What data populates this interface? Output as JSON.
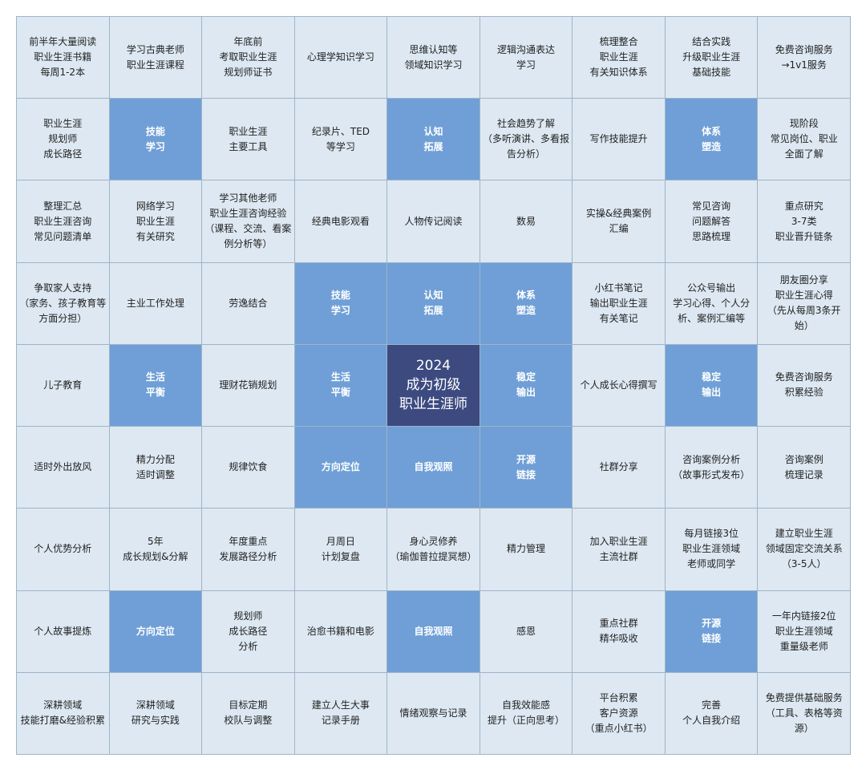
{
  "colors": {
    "cell_bg": "#dde8f2",
    "theme_bg": "#6f9fd6",
    "center_bg": "#3c4a80",
    "border": "#9fb4c8"
  },
  "grid": {
    "rows": [
      [
        {
          "text": "前半年大量阅读\n职业生涯书籍\n每周1-2本",
          "style": "normal"
        },
        {
          "text": "学习古典老师\n职业生涯课程",
          "style": "normal"
        },
        {
          "text": "年底前\n考取职业生涯\n规划师证书",
          "style": "normal"
        },
        {
          "text": "心理学知识学习",
          "style": "normal"
        },
        {
          "text": "思维认知等\n领域知识学习",
          "style": "normal"
        },
        {
          "text": "逻辑沟通表达\n学习",
          "style": "normal"
        },
        {
          "text": "梳理整合\n职业生涯\n有关知识体系",
          "style": "normal"
        },
        {
          "text": "结合实践\n升级职业生涯\n基础技能",
          "style": "normal"
        },
        {
          "text": "免费咨询服务\n→1v1服务",
          "style": "normal"
        }
      ],
      [
        {
          "text": "职业生涯\n规划师\n成长路径",
          "style": "normal"
        },
        {
          "text": "技能\n学习",
          "style": "theme"
        },
        {
          "text": "职业生涯\n主要工具",
          "style": "normal"
        },
        {
          "text": "纪录片、TED\n等学习",
          "style": "normal"
        },
        {
          "text": "认知\n拓展",
          "style": "theme"
        },
        {
          "text": "社会趋势了解\n（多听演讲、多看报\n告分析）",
          "style": "normal"
        },
        {
          "text": "写作技能提升",
          "style": "normal"
        },
        {
          "text": "体系\n塑造",
          "style": "theme"
        },
        {
          "text": "现阶段\n常见岗位、职业\n全面了解",
          "style": "normal"
        }
      ],
      [
        {
          "text": "整理汇总\n职业生涯咨询\n常见问题清单",
          "style": "normal"
        },
        {
          "text": "网络学习\n职业生涯\n有关研究",
          "style": "normal"
        },
        {
          "text": "学习其他老师\n职业生涯咨询经验\n（课程、交流、看案\n例分析等）",
          "style": "normal"
        },
        {
          "text": "经典电影观看",
          "style": "normal"
        },
        {
          "text": "人物传记阅读",
          "style": "normal"
        },
        {
          "text": "数易",
          "style": "normal"
        },
        {
          "text": "实操&经典案例\n汇编",
          "style": "normal"
        },
        {
          "text": "常见咨询\n问题解答\n思路梳理",
          "style": "normal"
        },
        {
          "text": "重点研究\n3-7类\n职业晋升链条",
          "style": "normal"
        }
      ],
      [
        {
          "text": "争取家人支持\n（家务、孩子教育等\n方面分担）",
          "style": "normal"
        },
        {
          "text": "主业工作处理",
          "style": "normal"
        },
        {
          "text": "劳逸结合",
          "style": "normal"
        },
        {
          "text": "技能\n学习",
          "style": "theme"
        },
        {
          "text": "认知\n拓展",
          "style": "theme"
        },
        {
          "text": "体系\n塑造",
          "style": "theme"
        },
        {
          "text": "小红书笔记\n输出职业生涯\n有关笔记",
          "style": "normal"
        },
        {
          "text": "公众号输出\n学习心得、个人分\n析、案例汇编等",
          "style": "normal"
        },
        {
          "text": "朋友圈分享\n职业生涯心得\n（先从每周3条开\n始）",
          "style": "normal"
        }
      ],
      [
        {
          "text": "儿子教育",
          "style": "normal"
        },
        {
          "text": "生活\n平衡",
          "style": "theme"
        },
        {
          "text": "理财花销规划",
          "style": "normal"
        },
        {
          "text": "生活\n平衡",
          "style": "theme"
        },
        {
          "text": "2024\n成为初级\n职业生涯师",
          "style": "center"
        },
        {
          "text": "稳定\n输出",
          "style": "theme"
        },
        {
          "text": "个人成长心得撰写",
          "style": "normal"
        },
        {
          "text": "稳定\n输出",
          "style": "theme"
        },
        {
          "text": "免费咨询服务\n积累经验",
          "style": "normal"
        }
      ],
      [
        {
          "text": "适时外出放风",
          "style": "normal"
        },
        {
          "text": "精力分配\n适时调整",
          "style": "normal"
        },
        {
          "text": "规律饮食",
          "style": "normal"
        },
        {
          "text": "方向定位",
          "style": "theme"
        },
        {
          "text": "自我观照",
          "style": "theme"
        },
        {
          "text": "开源\n链接",
          "style": "theme"
        },
        {
          "text": "社群分享",
          "style": "normal"
        },
        {
          "text": "咨询案例分析\n（故事形式发布）",
          "style": "normal"
        },
        {
          "text": "咨询案例\n梳理记录",
          "style": "normal"
        }
      ],
      [
        {
          "text": "个人优势分析",
          "style": "normal"
        },
        {
          "text": "5年\n成长规划&分解",
          "style": "normal"
        },
        {
          "text": "年度重点\n发展路径分析",
          "style": "normal"
        },
        {
          "text": "月周日\n计划复盘",
          "style": "normal"
        },
        {
          "text": "身心灵修养\n（瑜伽普拉提冥想）",
          "style": "normal"
        },
        {
          "text": "精力管理",
          "style": "normal"
        },
        {
          "text": "加入职业生涯\n主流社群",
          "style": "normal"
        },
        {
          "text": "每月链接3位\n职业生涯领域\n老师或同学",
          "style": "normal"
        },
        {
          "text": "建立职业生涯\n领域固定交流关系\n（3-5人）",
          "style": "normal"
        }
      ],
      [
        {
          "text": "个人故事提炼",
          "style": "normal"
        },
        {
          "text": "方向定位",
          "style": "theme"
        },
        {
          "text": "规划师\n成长路径\n分析",
          "style": "normal"
        },
        {
          "text": "治愈书籍和电影",
          "style": "normal"
        },
        {
          "text": "自我观照",
          "style": "theme"
        },
        {
          "text": "感恩",
          "style": "normal"
        },
        {
          "text": "重点社群\n精华吸收",
          "style": "normal"
        },
        {
          "text": "开源\n链接",
          "style": "theme"
        },
        {
          "text": "一年内链接2位\n职业生涯领域\n重量级老师",
          "style": "normal"
        }
      ],
      [
        {
          "text": "深耕领域\n技能打磨&经验积累",
          "style": "normal"
        },
        {
          "text": "深耕领域\n研究与实践",
          "style": "normal"
        },
        {
          "text": "目标定期\n校队与调整",
          "style": "normal"
        },
        {
          "text": "建立人生大事\n记录手册",
          "style": "normal"
        },
        {
          "text": "情绪观察与记录",
          "style": "normal"
        },
        {
          "text": "自我效能感\n提升（正向思考）",
          "style": "normal"
        },
        {
          "text": "平台积累\n客户资源\n（重点小红书）",
          "style": "normal"
        },
        {
          "text": "完善\n个人自我介绍",
          "style": "normal"
        },
        {
          "text": "免费提供基础服务\n（工具、表格等资\n源）",
          "style": "normal"
        }
      ]
    ]
  }
}
